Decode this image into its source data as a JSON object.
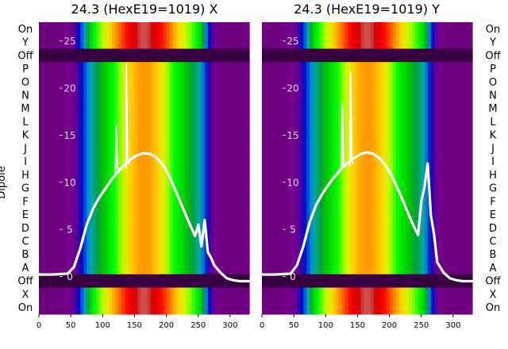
{
  "figure": {
    "left_title": "24.3 (HexE19=1019) X",
    "right_title": "24.3 (HexE19=1019) Y",
    "ylabel": "Dipole"
  },
  "chart_data": [
    {
      "type": "heatmap",
      "title": "24.3 (HexE19=1019) X",
      "ylabel": "Dipole",
      "row_labels": [
        "On",
        "Y",
        "Off",
        "P",
        "O",
        "N",
        "M",
        "L",
        "K",
        "J",
        "I",
        "H",
        "G",
        "F",
        "E",
        "D",
        "C",
        "B",
        "A",
        "Off",
        "X",
        "On"
      ],
      "x_ticks": [
        0,
        50,
        100,
        150,
        200,
        250,
        300
      ],
      "xlim": [
        0,
        330
      ],
      "overlay_axis_ticks": [
        0,
        5,
        10,
        15,
        20,
        25
      ],
      "overlay_ylim": [
        -4,
        27
      ],
      "colormap": "nipy_spectral",
      "series": [
        {
          "name": "",
          "x": [
            0,
            20,
            45,
            55,
            65,
            75,
            85,
            95,
            105,
            115,
            125,
            135,
            145,
            155,
            165,
            175,
            185,
            195,
            205,
            215,
            225,
            235,
            245,
            250,
            255,
            260,
            265,
            270,
            275,
            285,
            295,
            305,
            315,
            330
          ],
          "y": [
            0.2,
            0.2,
            0.3,
            1.0,
            3.0,
            5.5,
            7.2,
            8.4,
            9.4,
            10.4,
            11.2,
            11.9,
            12.5,
            12.9,
            13.1,
            13.0,
            12.6,
            11.8,
            10.6,
            9.0,
            7.4,
            5.8,
            4.3,
            5.5,
            3.2,
            6.0,
            2.6,
            2.0,
            1.2,
            0.4,
            -0.2,
            -0.4,
            -0.5,
            -0.5
          ]
        },
        {
          "name": "",
          "x": [
            137,
            137,
            139,
            141,
            143
          ],
          "y": [
            11.5,
            22.5,
            12.5,
            12.0,
            12.3
          ]
        },
        {
          "name": "",
          "x": [
            120,
            121,
            123,
            125
          ],
          "y": [
            11.0,
            16.0,
            11.6,
            11.3
          ]
        }
      ]
    },
    {
      "type": "heatmap",
      "title": "24.3 (HexE19=1019) Y",
      "row_labels": [
        "On",
        "Y",
        "Off",
        "P",
        "O",
        "N",
        "M",
        "L",
        "K",
        "J",
        "I",
        "H",
        "G",
        "F",
        "E",
        "D",
        "C",
        "B",
        "A",
        "Off",
        "X",
        "On"
      ],
      "x_ticks": [
        0,
        50,
        100,
        150,
        200,
        250,
        300
      ],
      "xlim": [
        0,
        330
      ],
      "overlay_axis_ticks": [
        0,
        5,
        10,
        15,
        20,
        25
      ],
      "overlay_ylim": [
        -4,
        27
      ],
      "colormap": "nipy_spectral",
      "series": [
        {
          "name": "",
          "x": [
            0,
            20,
            45,
            55,
            65,
            75,
            85,
            95,
            105,
            115,
            125,
            135,
            145,
            155,
            165,
            175,
            185,
            195,
            205,
            215,
            225,
            235,
            245,
            250,
            255,
            260,
            265,
            270,
            275,
            285,
            295,
            305,
            315,
            330
          ],
          "y": [
            0.2,
            0.2,
            0.3,
            1.2,
            3.2,
            5.8,
            7.6,
            8.8,
            9.8,
            10.7,
            11.5,
            12.1,
            12.6,
            13.0,
            13.2,
            13.0,
            12.5,
            11.7,
            10.5,
            9.0,
            7.4,
            5.8,
            4.4,
            8.0,
            9.5,
            12.0,
            6.5,
            4.5,
            1.5,
            0.4,
            -0.2,
            -0.4,
            -0.5,
            -0.5
          ]
        },
        {
          "name": "",
          "x": [
            125,
            126,
            128,
            130
          ],
          "y": [
            11.4,
            18.3,
            11.8,
            11.7
          ]
        },
        {
          "name": "",
          "x": [
            138,
            139,
            141,
            143
          ],
          "y": [
            11.8,
            21.7,
            12.3,
            12.0
          ]
        }
      ]
    }
  ]
}
